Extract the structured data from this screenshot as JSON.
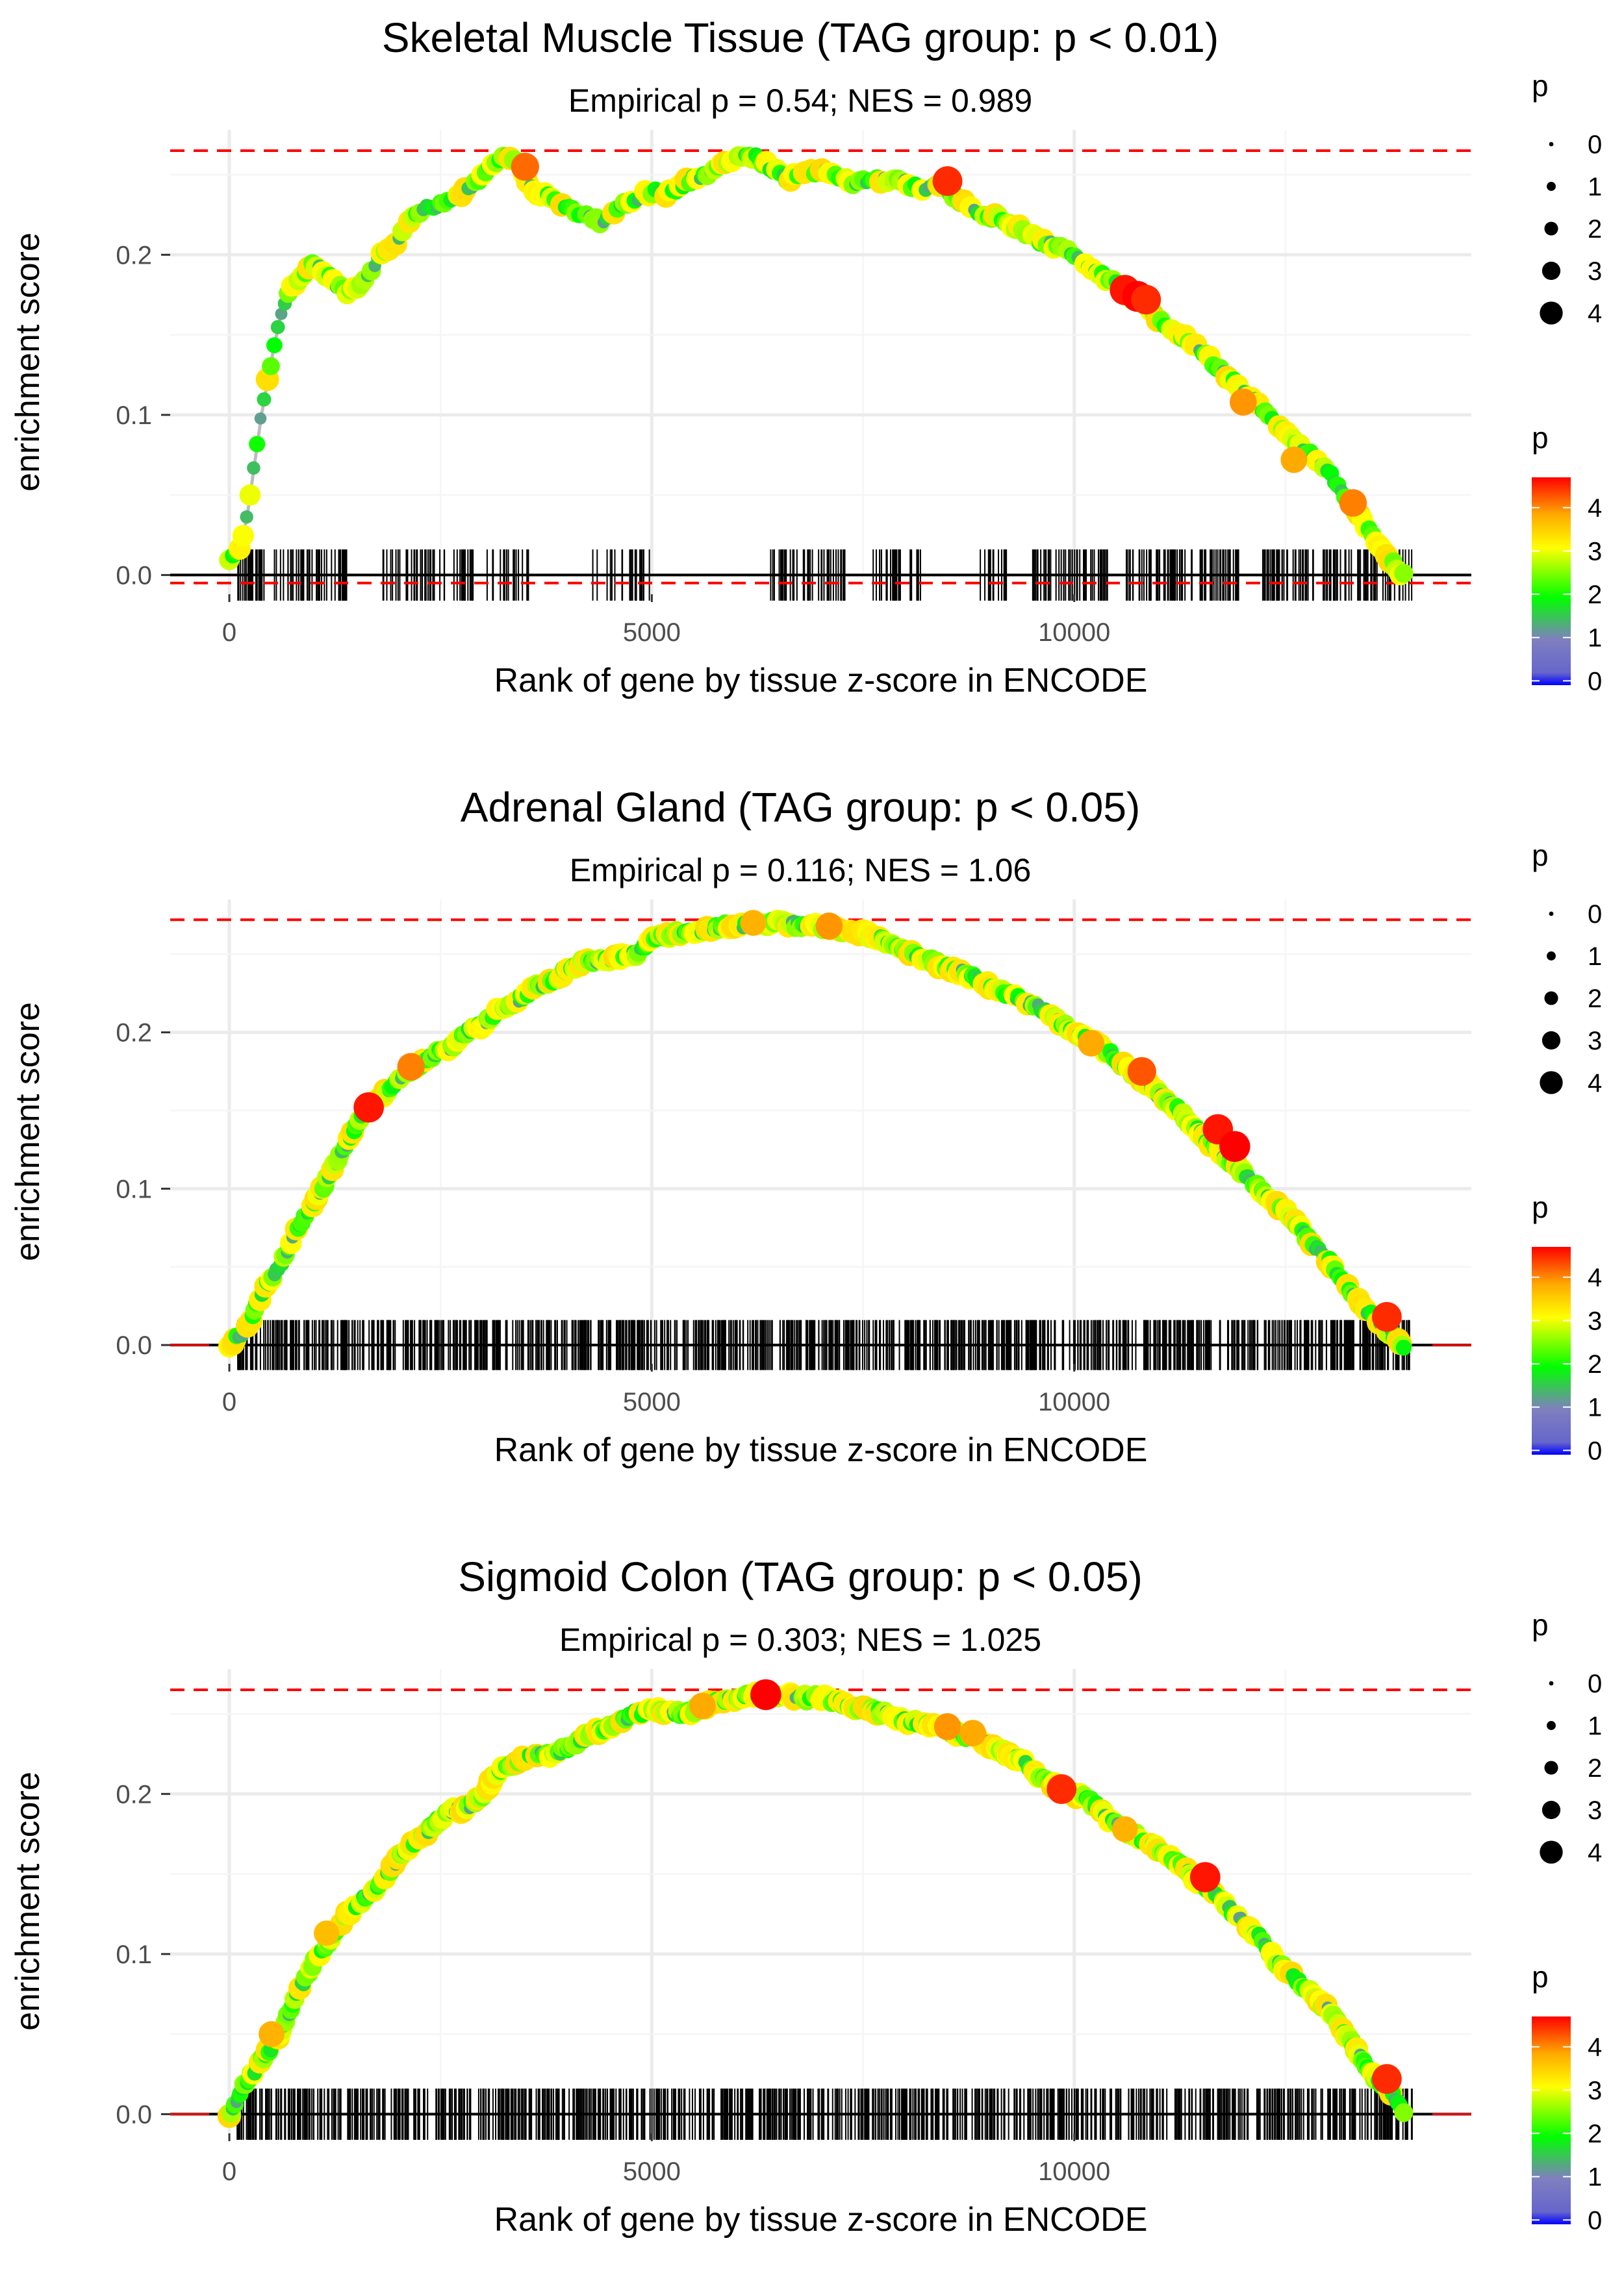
{
  "chart_data": [
    {
      "type": "line",
      "title": "Skeletal Muscle Tissue (TAG group: p < 0.01)",
      "subtitle": "Empirical p = 0.54; NES = 0.989",
      "xlabel": "Rank of gene by tissue z-score in ENCODE",
      "ylabel": "enrichment score",
      "xlim": [
        -700,
        14700
      ],
      "ylim": [
        -0.012,
        0.278
      ],
      "xticks": [
        0,
        5000,
        10000
      ],
      "yticks": [
        0.0,
        0.1,
        0.2
      ],
      "max_es": 0.265,
      "min_es": -0.005,
      "series": [
        {
          "name": "running enrichment score",
          "x": [
            0,
            80,
            150,
            220,
            300,
            380,
            450,
            520,
            600,
            700,
            800,
            900,
            1000,
            1100,
            1200,
            1300,
            1400,
            1500,
            1600,
            1700,
            1800,
            1900,
            2000,
            2100,
            2200,
            2300,
            2400,
            2500,
            2600,
            2700,
            2800,
            2900,
            3000,
            3100,
            3200,
            3300,
            3400,
            3500,
            3600,
            3800,
            4000,
            4200,
            4400,
            4600,
            4800,
            5000,
            5200,
            5400,
            5600,
            5800,
            6000,
            6200,
            6400,
            6600,
            6800,
            7000,
            7200,
            7400,
            7600,
            7800,
            8000,
            8200,
            8400,
            8600,
            8800,
            9000,
            9200,
            9400,
            9600,
            9800,
            10000,
            10200,
            10400,
            10600,
            10800,
            11000,
            11200,
            11400,
            11600,
            11800,
            12000,
            12200,
            12400,
            12600,
            12800,
            13000,
            13200,
            13400,
            13600,
            13800,
            13900
          ],
          "values": [
            0.01,
            0.012,
            0.02,
            0.04,
            0.07,
            0.1,
            0.12,
            0.14,
            0.16,
            0.175,
            0.185,
            0.19,
            0.195,
            0.19,
            0.185,
            0.18,
            0.175,
            0.18,
            0.185,
            0.19,
            0.2,
            0.205,
            0.21,
            0.22,
            0.225,
            0.23,
            0.228,
            0.232,
            0.235,
            0.238,
            0.24,
            0.245,
            0.25,
            0.255,
            0.26,
            0.262,
            0.258,
            0.25,
            0.24,
            0.235,
            0.23,
            0.225,
            0.22,
            0.23,
            0.235,
            0.24,
            0.238,
            0.245,
            0.25,
            0.255,
            0.26,
            0.262,
            0.255,
            0.248,
            0.25,
            0.252,
            0.248,
            0.245,
            0.246,
            0.247,
            0.245,
            0.24,
            0.245,
            0.235,
            0.228,
            0.225,
            0.22,
            0.215,
            0.208,
            0.205,
            0.2,
            0.19,
            0.185,
            0.178,
            0.17,
            0.16,
            0.152,
            0.145,
            0.135,
            0.125,
            0.115,
            0.105,
            0.095,
            0.085,
            0.075,
            0.065,
            0.05,
            0.035,
            0.02,
            0.005,
            0.0
          ]
        }
      ],
      "highlights": [
        {
          "x": 3500,
          "y": 0.255,
          "p": 4.2
        },
        {
          "x": 8500,
          "y": 0.246,
          "p": 4.5
        },
        {
          "x": 10600,
          "y": 0.178,
          "p": 4.6
        },
        {
          "x": 10750,
          "y": 0.174,
          "p": 4.7
        },
        {
          "x": 10850,
          "y": 0.172,
          "p": 4.5
        },
        {
          "x": 12000,
          "y": 0.108,
          "p": 4.0
        },
        {
          "x": 12600,
          "y": 0.072,
          "p": 3.9
        },
        {
          "x": 13300,
          "y": 0.045,
          "p": 4.1
        }
      ],
      "rug_density": "sparse",
      "rug_x_range": [
        80,
        14000
      ],
      "legend_size": {
        "title": "p",
        "labels": [
          "0",
          "1",
          "2",
          "3",
          "4"
        ]
      },
      "legend_color": {
        "title": "p",
        "labels": [
          "0",
          "1",
          "2",
          "3",
          "4"
        ],
        "colors": [
          "#0000ff",
          "#7f7fbf",
          "#00ff00",
          "#ffff00",
          "#ff0000"
        ]
      }
    },
    {
      "type": "line",
      "title": "Adrenal Gland (TAG group: p < 0.05)",
      "subtitle": "Empirical p = 0.116; NES = 1.06",
      "xlabel": "Rank of gene by tissue z-score in ENCODE",
      "ylabel": "enrichment score",
      "xlim": [
        -700,
        14700
      ],
      "ylim": [
        -0.012,
        0.285
      ],
      "xticks": [
        0,
        5000,
        10000
      ],
      "yticks": [
        0.0,
        0.1,
        0.2
      ],
      "max_es": 0.272,
      "min_es": 0.0,
      "series": [
        {
          "name": "running enrichment score",
          "x": [
            0,
            200,
            400,
            600,
            800,
            1000,
            1200,
            1400,
            1600,
            1800,
            2000,
            2200,
            2400,
            2600,
            2800,
            3000,
            3200,
            3400,
            3600,
            3800,
            4000,
            4200,
            4400,
            4600,
            4800,
            5000,
            5200,
            5400,
            5600,
            5800,
            6000,
            6200,
            6400,
            6600,
            6800,
            7000,
            7200,
            7400,
            7600,
            7800,
            8000,
            8200,
            8400,
            8600,
            8800,
            9000,
            9200,
            9400,
            9600,
            9800,
            10000,
            10200,
            10400,
            10600,
            10800,
            11000,
            11200,
            11400,
            11600,
            11800,
            12000,
            12200,
            12400,
            12600,
            12800,
            13000,
            13200,
            13400,
            13600,
            13800,
            13900
          ],
          "values": [
            0.0,
            0.01,
            0.035,
            0.05,
            0.075,
            0.09,
            0.11,
            0.13,
            0.15,
            0.16,
            0.17,
            0.178,
            0.185,
            0.19,
            0.2,
            0.205,
            0.215,
            0.22,
            0.228,
            0.232,
            0.24,
            0.245,
            0.245,
            0.248,
            0.25,
            0.26,
            0.262,
            0.265,
            0.265,
            0.268,
            0.268,
            0.27,
            0.27,
            0.27,
            0.268,
            0.268,
            0.266,
            0.265,
            0.262,
            0.258,
            0.252,
            0.248,
            0.243,
            0.24,
            0.235,
            0.23,
            0.225,
            0.22,
            0.215,
            0.208,
            0.2,
            0.195,
            0.188,
            0.178,
            0.17,
            0.16,
            0.152,
            0.14,
            0.13,
            0.12,
            0.11,
            0.1,
            0.09,
            0.08,
            0.065,
            0.055,
            0.04,
            0.025,
            0.015,
            0.005,
            0.0
          ]
        }
      ],
      "highlights": [
        {
          "x": 1650,
          "y": 0.152,
          "p": 4.6
        },
        {
          "x": 2150,
          "y": 0.178,
          "p": 4.1
        },
        {
          "x": 6200,
          "y": 0.27,
          "p": 3.8
        },
        {
          "x": 7100,
          "y": 0.268,
          "p": 4.0
        },
        {
          "x": 10200,
          "y": 0.193,
          "p": 3.9
        },
        {
          "x": 10800,
          "y": 0.175,
          "p": 4.3
        },
        {
          "x": 11700,
          "y": 0.138,
          "p": 4.6
        },
        {
          "x": 11900,
          "y": 0.127,
          "p": 4.7
        },
        {
          "x": 13700,
          "y": 0.018,
          "p": 4.5
        }
      ],
      "rug_density": "dense",
      "rug_x_range": [
        80,
        14000
      ],
      "legend_size": {
        "title": "p",
        "labels": [
          "0",
          "1",
          "2",
          "3",
          "4"
        ]
      },
      "legend_color": {
        "title": "p",
        "labels": [
          "0",
          "1",
          "2",
          "3",
          "4"
        ],
        "colors": [
          "#0000ff",
          "#7f7fbf",
          "#00ff00",
          "#ffff00",
          "#ff0000"
        ]
      }
    },
    {
      "type": "line",
      "title": "Sigmoid Colon (TAG group: p < 0.05)",
      "subtitle": "Empirical p = 0.303; NES = 1.025",
      "xlabel": "Rank of gene by tissue z-score in ENCODE",
      "ylabel": "enrichment score",
      "xlim": [
        -700,
        14700
      ],
      "ylim": [
        -0.012,
        0.278
      ],
      "xticks": [
        0,
        5000,
        10000
      ],
      "yticks": [
        0.0,
        0.1,
        0.2
      ],
      "max_es": 0.265,
      "min_es": 0.0,
      "series": [
        {
          "name": "running enrichment score",
          "x": [
            0,
            200,
            400,
            600,
            800,
            1000,
            1200,
            1400,
            1600,
            1800,
            2000,
            2200,
            2400,
            2600,
            2800,
            3000,
            3200,
            3400,
            3600,
            3800,
            4000,
            4200,
            4400,
            4600,
            4800,
            5000,
            5200,
            5400,
            5600,
            5800,
            6000,
            6200,
            6400,
            6600,
            6800,
            7000,
            7200,
            7400,
            7600,
            7800,
            8000,
            8200,
            8400,
            8600,
            8800,
            9000,
            9200,
            9400,
            9600,
            9800,
            10000,
            10200,
            10400,
            10600,
            10800,
            11000,
            11200,
            11400,
            11600,
            11800,
            12000,
            12200,
            12400,
            12600,
            12800,
            13000,
            13200,
            13400,
            13600,
            13800,
            13900
          ],
          "values": [
            0.0,
            0.02,
            0.035,
            0.05,
            0.075,
            0.095,
            0.11,
            0.125,
            0.135,
            0.145,
            0.16,
            0.17,
            0.18,
            0.19,
            0.19,
            0.2,
            0.215,
            0.22,
            0.225,
            0.225,
            0.228,
            0.235,
            0.24,
            0.245,
            0.25,
            0.252,
            0.252,
            0.25,
            0.255,
            0.258,
            0.26,
            0.262,
            0.262,
            0.262,
            0.26,
            0.26,
            0.258,
            0.255,
            0.252,
            0.25,
            0.245,
            0.245,
            0.242,
            0.238,
            0.235,
            0.23,
            0.225,
            0.22,
            0.21,
            0.205,
            0.2,
            0.195,
            0.185,
            0.178,
            0.172,
            0.165,
            0.158,
            0.148,
            0.14,
            0.13,
            0.12,
            0.11,
            0.095,
            0.085,
            0.075,
            0.065,
            0.05,
            0.035,
            0.02,
            0.01,
            0.0
          ]
        }
      ],
      "highlights": [
        {
          "x": 500,
          "y": 0.05,
          "p": 3.8
        },
        {
          "x": 1150,
          "y": 0.113,
          "p": 3.7
        },
        {
          "x": 5600,
          "y": 0.255,
          "p": 3.9
        },
        {
          "x": 6350,
          "y": 0.262,
          "p": 4.7
        },
        {
          "x": 8500,
          "y": 0.242,
          "p": 4.0
        },
        {
          "x": 8800,
          "y": 0.238,
          "p": 3.9
        },
        {
          "x": 9850,
          "y": 0.203,
          "p": 4.5
        },
        {
          "x": 10600,
          "y": 0.178,
          "p": 3.8
        },
        {
          "x": 11550,
          "y": 0.148,
          "p": 4.6
        },
        {
          "x": 13700,
          "y": 0.022,
          "p": 4.5
        }
      ],
      "rug_density": "dense",
      "rug_x_range": [
        80,
        14000
      ],
      "legend_size": {
        "title": "p",
        "labels": [
          "0",
          "1",
          "2",
          "3",
          "4"
        ]
      },
      "legend_color": {
        "title": "p",
        "labels": [
          "0",
          "1",
          "2",
          "3",
          "4"
        ],
        "colors": [
          "#0000ff",
          "#7f7fbf",
          "#00ff00",
          "#ffff00",
          "#ff0000"
        ]
      }
    }
  ]
}
